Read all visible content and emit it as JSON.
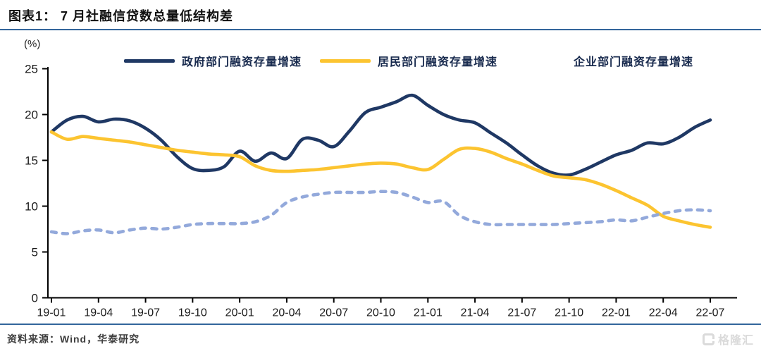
{
  "header": {
    "title": "图表1：  7 月社融信贷数总量低结构差"
  },
  "footer": {
    "source": "资料来源：Wind，华泰研究",
    "logo_text": "格隆汇"
  },
  "accent_colors": {
    "rule_blue": "#33669b",
    "axis_black": "#000000"
  },
  "chart_data": {
    "type": "line",
    "title": "7 月社融信贷数总量低结构差",
    "unit_label": "(%)",
    "ylim": [
      0,
      25
    ],
    "yticks": [
      0,
      5,
      10,
      15,
      20,
      25
    ],
    "grid": false,
    "legend_position": "top",
    "x": [
      "19-01",
      "19-02",
      "19-03",
      "19-04",
      "19-05",
      "19-06",
      "19-07",
      "19-08",
      "19-09",
      "19-10",
      "19-11",
      "19-12",
      "20-01",
      "20-02",
      "20-03",
      "20-04",
      "20-05",
      "20-06",
      "20-07",
      "20-08",
      "20-09",
      "20-10",
      "20-11",
      "20-12",
      "21-01",
      "21-02",
      "21-03",
      "21-04",
      "21-05",
      "21-06",
      "21-07",
      "21-08",
      "21-09",
      "21-10",
      "21-11",
      "21-12",
      "22-01",
      "22-02",
      "22-03",
      "22-04",
      "22-05",
      "22-06",
      "22-07"
    ],
    "x_tick_labels": [
      "19-01",
      "19-04",
      "19-07",
      "19-10",
      "20-01",
      "20-04",
      "20-07",
      "20-10",
      "21-01",
      "21-04",
      "21-07",
      "21-10",
      "22-01",
      "22-04",
      "22-07"
    ],
    "x_tick_step": 3,
    "series": [
      {
        "id": "government",
        "name": "政府部门融资存量增速",
        "color": "#1f3864",
        "style": "solid",
        "values": [
          18.1,
          19.4,
          19.8,
          19.2,
          19.5,
          19.3,
          18.5,
          17.2,
          15.4,
          14.1,
          13.9,
          14.3,
          16.0,
          14.9,
          15.8,
          15.2,
          17.3,
          17.2,
          16.5,
          18.2,
          20.2,
          20.8,
          21.4,
          22.1,
          21.0,
          20.0,
          19.4,
          19.1,
          18.0,
          16.9,
          15.6,
          14.4,
          13.6,
          13.4,
          14.0,
          14.8,
          15.6,
          16.1,
          16.9,
          16.8,
          17.5,
          18.6,
          19.4
        ]
      },
      {
        "id": "household",
        "name": "居民部门融资存量增速",
        "color": "#fcc430",
        "style": "solid",
        "values": [
          18.1,
          17.3,
          17.6,
          17.4,
          17.2,
          17.0,
          16.7,
          16.4,
          16.1,
          15.9,
          15.7,
          15.6,
          15.4,
          14.4,
          13.9,
          13.8,
          13.9,
          14.0,
          14.2,
          14.4,
          14.6,
          14.7,
          14.6,
          14.2,
          14.0,
          15.1,
          16.2,
          16.3,
          15.9,
          15.2,
          14.6,
          13.9,
          13.3,
          13.1,
          12.9,
          12.4,
          11.7,
          10.9,
          10.1,
          8.9,
          8.4,
          8.0,
          7.7
        ]
      },
      {
        "id": "enterprise",
        "name": "企业部门融资存量增速",
        "color": "#93a9db",
        "style": "dashed",
        "values": [
          7.2,
          7.0,
          7.3,
          7.4,
          7.1,
          7.4,
          7.6,
          7.5,
          7.7,
          8.0,
          8.1,
          8.1,
          8.1,
          8.3,
          9.0,
          10.4,
          11.0,
          11.3,
          11.5,
          11.5,
          11.5,
          11.6,
          11.5,
          11.0,
          10.4,
          10.5,
          9.0,
          8.3,
          8.0,
          8.0,
          8.0,
          8.0,
          8.0,
          8.1,
          8.2,
          8.3,
          8.5,
          8.4,
          8.8,
          9.2,
          9.5,
          9.6,
          9.5
        ]
      }
    ]
  }
}
